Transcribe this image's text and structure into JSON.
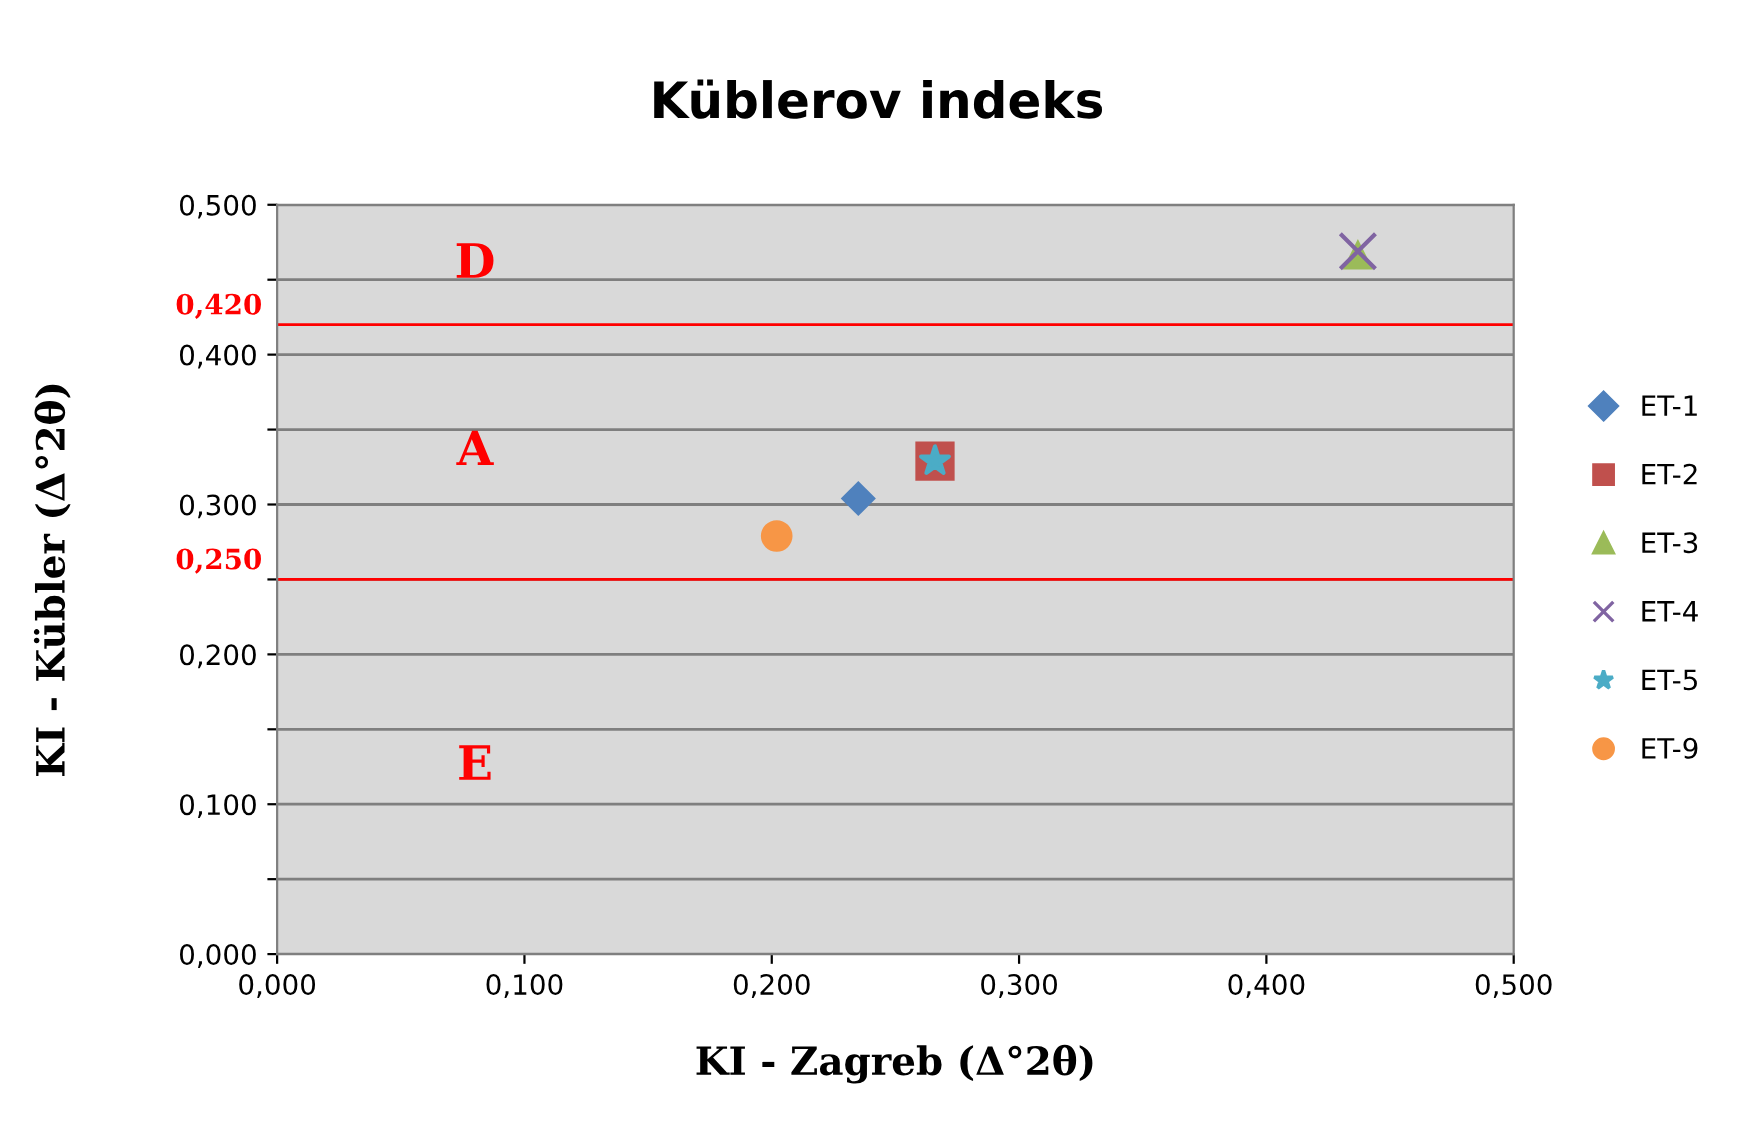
{
  "chart_data": {
    "type": "scatter",
    "title": "Küblerov indeks",
    "xlabel": "KI - Zagreb (Δ°2θ)",
    "ylabel": "KI - Kübler (Δ°2θ)",
    "xlim": [
      0,
      0.5
    ],
    "ylim": [
      0,
      0.5
    ],
    "xticks": [
      {
        "value": 0,
        "label": "0,000"
      },
      {
        "value": 0.1,
        "label": "0,100"
      },
      {
        "value": 0.2,
        "label": "0,200"
      },
      {
        "value": 0.3,
        "label": "0,300"
      },
      {
        "value": 0.4,
        "label": "0,400"
      },
      {
        "value": 0.5,
        "label": "0,500"
      }
    ],
    "yticks": [
      {
        "value": 0,
        "label": "0,000"
      },
      {
        "value": 0.05,
        "label": null
      },
      {
        "value": 0.1,
        "label": "0,100"
      },
      {
        "value": 0.15,
        "label": null
      },
      {
        "value": 0.2,
        "label": "0,200"
      },
      {
        "value": 0.25,
        "label": null
      },
      {
        "value": 0.3,
        "label": "0,300"
      },
      {
        "value": 0.35,
        "label": null
      },
      {
        "value": 0.4,
        "label": "0,400"
      },
      {
        "value": 0.45,
        "label": null
      },
      {
        "value": 0.5,
        "label": "0,500"
      }
    ],
    "grid": "y",
    "legend": "right",
    "series": [
      {
        "name": "ET-1",
        "color": "#4f81bd",
        "marker": "diamond",
        "x": [
          0.235
        ],
        "values": [
          0.304
        ]
      },
      {
        "name": "ET-2",
        "color": "#c0504d",
        "marker": "square",
        "x": [
          0.266
        ],
        "values": [
          0.329
        ]
      },
      {
        "name": "ET-3",
        "color": "#9bbb59",
        "marker": "triangle",
        "x": [
          0.437
        ],
        "values": [
          0.467
        ]
      },
      {
        "name": "ET-4",
        "color": "#8064a2",
        "marker": "cross",
        "x": [
          0.437
        ],
        "values": [
          0.469
        ]
      },
      {
        "name": "ET-5",
        "color": "#4bacc6",
        "marker": "star",
        "x": [
          0.266
        ],
        "values": [
          0.329
        ]
      },
      {
        "name": "ET-9",
        "color": "#f79646",
        "marker": "circle",
        "x": [
          0.202
        ],
        "values": [
          0.279
        ]
      }
    ],
    "ref_lines": [
      {
        "axis": "y",
        "value": 0.42,
        "label": "0,420",
        "color": "#ff0000"
      },
      {
        "axis": "y",
        "value": 0.25,
        "label": "0,250",
        "color": "#ff0000"
      }
    ],
    "annotations": [
      "D",
      "A",
      "E"
    ]
  }
}
